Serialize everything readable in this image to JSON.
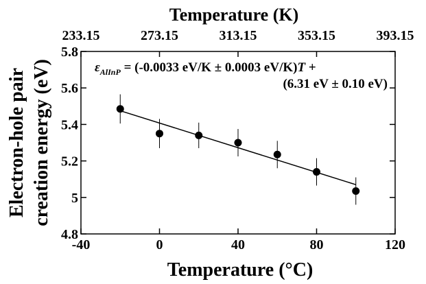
{
  "chart_data": {
    "type": "scatter",
    "title": "",
    "xlabel": "Temperature (°C)",
    "ylabel": "Electron-hole pair creation energy (eV)",
    "ylabel_lines": [
      "Electron-hole pair",
      "creation energy (eV)"
    ],
    "top_xlabel": "Temperature (K)",
    "xlim": [
      -40,
      120
    ],
    "ylim": [
      4.8,
      5.8
    ],
    "x_ticks": [
      -40,
      0,
      40,
      80,
      120
    ],
    "x_tick_labels": [
      "-40",
      "0",
      "40",
      "80",
      "120"
    ],
    "y_ticks": [
      4.8,
      5,
      5.2,
      5.4,
      5.6,
      5.8
    ],
    "y_tick_labels": [
      "4.8",
      "5",
      "5.2",
      "5.4",
      "5.6",
      "5.8"
    ],
    "top_ticks": [
      -40,
      0,
      40,
      80,
      120
    ],
    "top_tick_labels": [
      "233.15",
      "273.15",
      "313.15",
      "353.15",
      "393.15"
    ],
    "points": [
      {
        "x": -20,
        "y": 5.485,
        "err": 0.08
      },
      {
        "x": 0,
        "y": 5.35,
        "err": 0.08
      },
      {
        "x": 20,
        "y": 5.34,
        "err": 0.07
      },
      {
        "x": 40,
        "y": 5.3,
        "err": 0.075
      },
      {
        "x": 60,
        "y": 5.235,
        "err": 0.075
      },
      {
        "x": 80,
        "y": 5.14,
        "err": 0.075
      },
      {
        "x": 100,
        "y": 5.035,
        "err": 0.075
      }
    ],
    "fit": {
      "x": [
        -20,
        100
      ],
      "y": [
        5.475,
        5.07
      ]
    },
    "annotation": {
      "line1": "εAlInP = (-0.0033 eV/K ± 0.0003 eV/K)T +",
      "line2": "(6.31 eV ± 0.10 eV)"
    },
    "grid": false,
    "legend": "none"
  }
}
